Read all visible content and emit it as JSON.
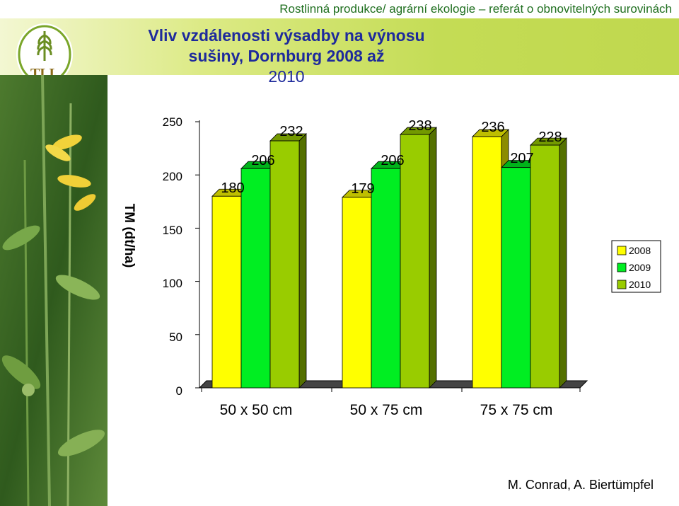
{
  "header": {
    "subtitle": "Rostlinná produkce/ agrární ekologie – referát o obnovitelných surovinách",
    "title_line1": "Vliv vzdálenosti výsadby na výnosu sušiny, Dornburg 2008 až",
    "title_line2": "2010",
    "logo_text": "TLL"
  },
  "footer": {
    "author": "M. Conrad, A. Biertümpfel"
  },
  "colors": {
    "2008": "#ffff00",
    "2009": "#00ee22",
    "2010": "#99cc00",
    "title": "#1e2a9c"
  },
  "chart_data": {
    "type": "bar",
    "categories": [
      "50 x 50 cm",
      "50 x 75 cm",
      "75 x 75 cm"
    ],
    "series": [
      {
        "name": "2008",
        "values": [
          180,
          179,
          236
        ]
      },
      {
        "name": "2009",
        "values": [
          206,
          206,
          207
        ]
      },
      {
        "name": "2010",
        "values": [
          232,
          238,
          228
        ]
      }
    ],
    "ylabel": "TM (dt/ha)",
    "ylim": [
      0,
      250
    ],
    "yticks": [
      "0",
      "50",
      "100",
      "150",
      "200",
      "250"
    ],
    "grid": false,
    "legend": "right",
    "bar_style": "3d"
  }
}
